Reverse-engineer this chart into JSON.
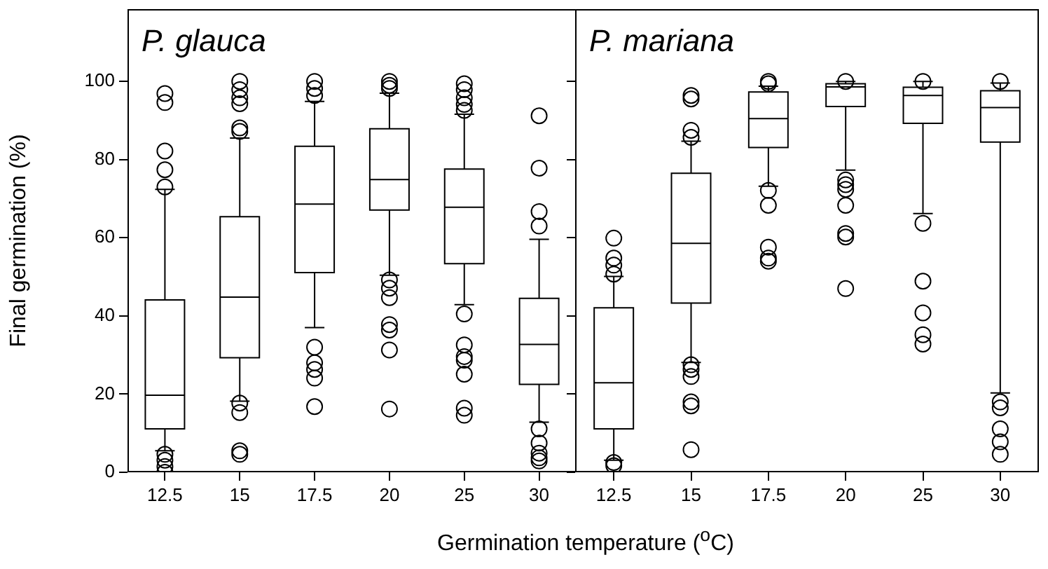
{
  "chart_data": [
    {
      "type": "box",
      "title": "P. glauca",
      "ylabel": "Final germination (%)",
      "xlabel": "Germination temperature ($^{o}$C)",
      "categories": [
        "12.5",
        "15",
        "17.5",
        "20",
        "25",
        "30"
      ],
      "ylim": [
        0,
        118.5
      ],
      "yticks": [
        0,
        20,
        40,
        60,
        80,
        100
      ],
      "marker": "circle",
      "boxes": [
        {
          "low": 5.5,
          "q1": 11.1,
          "median": 19.7,
          "q3": 44.1,
          "high": 72.4,
          "outliers": [
            96.9,
            94.6,
            82.2,
            77.4,
            73,
            4.6,
            3.1,
            1.5,
            0
          ]
        },
        {
          "low": 18.2,
          "q1": 29.3,
          "median": 44.8,
          "q3": 65.4,
          "high": 85.5,
          "outliers": [
            100,
            97.9,
            95.8,
            94.3,
            88.1,
            87.2,
            17.7,
            15.3,
            5.5,
            4.6
          ]
        },
        {
          "low": 37,
          "q1": 51.1,
          "median": 68.6,
          "q3": 83.4,
          "high": 94.9,
          "outliers": [
            100,
            98.2,
            96.4,
            32,
            28,
            26.3,
            24.1,
            16.8
          ]
        },
        {
          "low": 50.4,
          "q1": 67.1,
          "median": 74.9,
          "q3": 87.9,
          "high": 97,
          "outliers": [
            100,
            99,
            98.2,
            49.2,
            47.1,
            44.7,
            37.8,
            36.4,
            31.3,
            16.2
          ]
        },
        {
          "low": 42.9,
          "q1": 53.4,
          "median": 67.8,
          "q3": 77.6,
          "high": 91.6,
          "outliers": [
            99.4,
            97.9,
            95.8,
            94.1,
            92.6,
            40.5,
            32.6,
            29.6,
            28.7,
            25.1,
            16.4,
            14.6
          ]
        },
        {
          "low": 12.8,
          "q1": 22.5,
          "median": 32.7,
          "q3": 44.5,
          "high": 59.6,
          "outliers": [
            91.2,
            77.8,
            66.7,
            63,
            11.1,
            7.5,
            4.9,
            3.7,
            2.9
          ]
        }
      ]
    },
    {
      "type": "box",
      "title": "P. mariana",
      "categories": [
        "12.5",
        "15",
        "17.5",
        "20",
        "25",
        "30"
      ],
      "ylim": [
        0,
        118.5
      ],
      "yticks": [
        0,
        20,
        40,
        60,
        80,
        100
      ],
      "tick_labels": "x",
      "marker": "circle",
      "boxes": [
        {
          "low": 3.1,
          "q1": 11.1,
          "median": 22.9,
          "q3": 42.1,
          "high": 50.1,
          "outliers": [
            59.9,
            54.8,
            53,
            50.7,
            2.5,
            1.7
          ]
        },
        {
          "low": 28.1,
          "q1": 43.3,
          "median": 58.6,
          "q3": 76.5,
          "high": 84.7,
          "outliers": [
            96.4,
            95.5,
            87.5,
            85.7,
            27.5,
            26.3,
            24.5,
            18,
            17,
            5.8
          ]
        },
        {
          "low": 73.2,
          "q1": 83.1,
          "median": 90.5,
          "q3": 97.3,
          "high": 98.8,
          "outliers": [
            100,
            99.4,
            72.1,
            68.3,
            57.6,
            54.8,
            54
          ]
        },
        {
          "low": 77.3,
          "q1": 93.6,
          "median": 98.6,
          "q3": 99.4,
          "high": 100,
          "outliers": [
            100,
            74.8,
            73.6,
            72.4,
            68.3,
            61.1,
            60.2,
            47
          ]
        },
        {
          "low": 66.2,
          "q1": 89.3,
          "median": 96.4,
          "q3": 98.5,
          "high": 100,
          "outliers": [
            100,
            63.7,
            48.9,
            40.8,
            35.2,
            32.8
          ]
        },
        {
          "low": 20.3,
          "q1": 84.5,
          "median": 93.3,
          "q3": 97.6,
          "high": 99.6,
          "outliers": [
            100,
            18,
            16.5,
            11.1,
            7.8,
            4.6
          ]
        }
      ]
    }
  ]
}
